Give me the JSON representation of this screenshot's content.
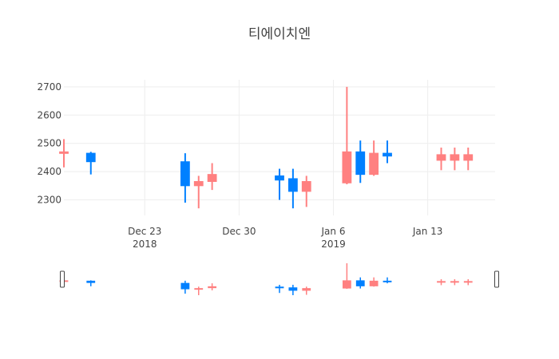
{
  "chart_data": {
    "type": "candlestick",
    "title": "티에이치엔",
    "xlabel": "",
    "ylabel": "",
    "ylim": [
      2245,
      2725
    ],
    "xlim": [
      "2018-12-17",
      "2019-01-18"
    ],
    "grid": true,
    "y_ticks": [
      "2300",
      "2400",
      "2500",
      "2600",
      "2700"
    ],
    "x_ticks": [
      {
        "date": "2018-12-23",
        "label": "Dec 23",
        "sublabel": "2018"
      },
      {
        "date": "2018-12-30",
        "label": "Dec 30",
        "sublabel": ""
      },
      {
        "date": "2019-01-06",
        "label": "Jan 6",
        "sublabel": "2019"
      },
      {
        "date": "2019-01-13",
        "label": "Jan 13",
        "sublabel": ""
      }
    ],
    "range_slider": true,
    "colors": {
      "increasing": "#ff8080",
      "decreasing": "#0080ff"
    },
    "candles": [
      {
        "date": "2018-12-17",
        "open": 2465,
        "high": 2515,
        "low": 2415,
        "close": 2470
      },
      {
        "date": "2018-12-19",
        "open": 2465,
        "high": 2470,
        "low": 2390,
        "close": 2435
      },
      {
        "date": "2018-12-26",
        "open": 2435,
        "high": 2465,
        "low": 2290,
        "close": 2350
      },
      {
        "date": "2018-12-27",
        "open": 2350,
        "high": 2385,
        "low": 2270,
        "close": 2365
      },
      {
        "date": "2018-12-28",
        "open": 2365,
        "high": 2430,
        "low": 2335,
        "close": 2390
      },
      {
        "date": "2019-01-02",
        "open": 2385,
        "high": 2410,
        "low": 2300,
        "close": 2370
      },
      {
        "date": "2019-01-03",
        "open": 2375,
        "high": 2410,
        "low": 2270,
        "close": 2330
      },
      {
        "date": "2019-01-04",
        "open": 2330,
        "high": 2385,
        "low": 2275,
        "close": 2365
      },
      {
        "date": "2019-01-07",
        "open": 2360,
        "high": 2700,
        "low": 2355,
        "close": 2470
      },
      {
        "date": "2019-01-08",
        "open": 2470,
        "high": 2510,
        "low": 2360,
        "close": 2390
      },
      {
        "date": "2019-01-09",
        "open": 2390,
        "high": 2510,
        "low": 2385,
        "close": 2465
      },
      {
        "date": "2019-01-10",
        "open": 2465,
        "high": 2510,
        "low": 2430,
        "close": 2455
      },
      {
        "date": "2019-01-14",
        "open": 2440,
        "high": 2485,
        "low": 2405,
        "close": 2460
      },
      {
        "date": "2019-01-15",
        "open": 2440,
        "high": 2485,
        "low": 2405,
        "close": 2460
      },
      {
        "date": "2019-01-16",
        "open": 2440,
        "high": 2485,
        "low": 2405,
        "close": 2460
      }
    ]
  }
}
